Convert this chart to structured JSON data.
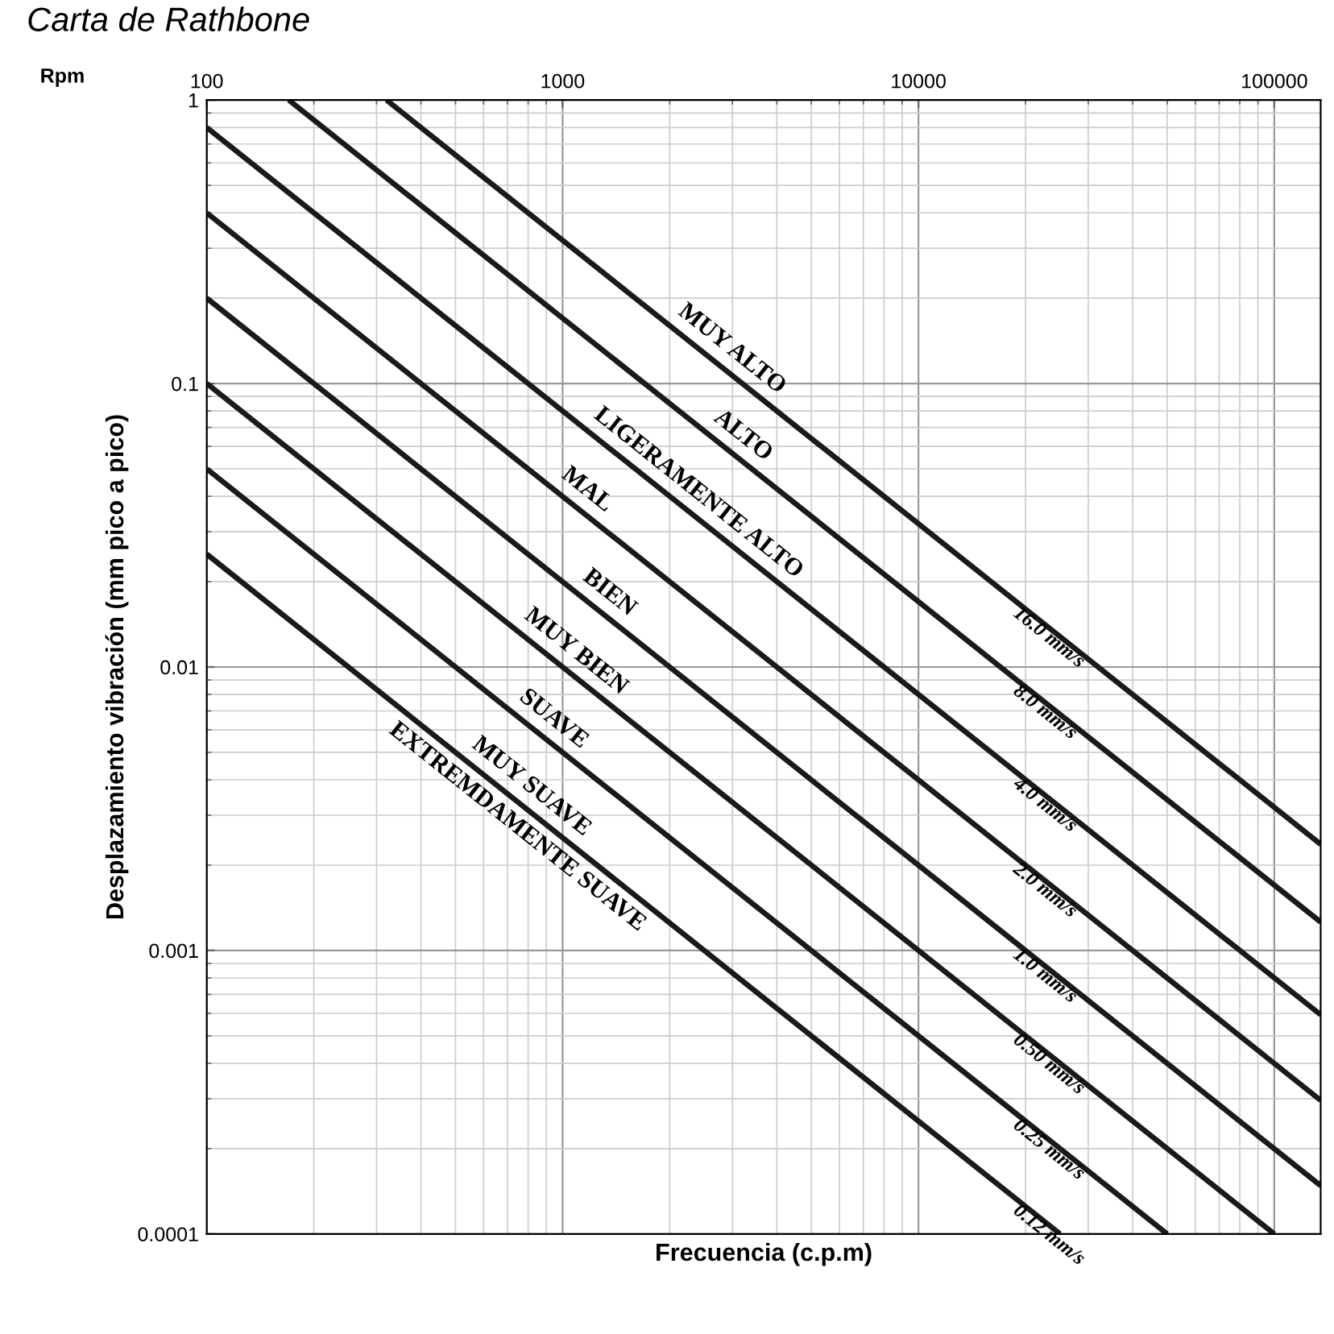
{
  "chart_data": {
    "type": "line",
    "title": "Carta de Rathbone",
    "xlabel": "Frecuencia (c.p.m)",
    "ylabel": "Desplazamiento vibración (mm pico a pico)",
    "log": "xy",
    "grid": true,
    "legend": false,
    "marker": "none",
    "line_style": "solid",
    "xlim": [
      100,
      135000
    ],
    "xticks": [
      100,
      1000,
      10000,
      100000
    ],
    "ylim": [
      0.0001,
      1
    ],
    "yticks": [
      0.0001,
      0.001,
      0.01,
      0.1,
      1
    ],
    "series": [
      {
        "name": "16.0 mm/s",
        "color": "#1a1a1a",
        "x": [
          320,
          135000
        ],
        "values": [
          1,
          0.00237
        ]
      },
      {
        "name": "8.0 mm/s",
        "color": "#1a1a1a",
        "x": [
          170,
          135000
        ],
        "values": [
          1,
          0.00126
        ]
      },
      {
        "name": "4.0 mm/s",
        "color": "#1a1a1a",
        "x": [
          100,
          135000
        ],
        "values": [
          0.8,
          0.000593
        ]
      },
      {
        "name": "2.0 mm/s",
        "color": "#1a1a1a",
        "x": [
          100,
          135000
        ],
        "values": [
          0.4,
          0.000296
        ]
      },
      {
        "name": "1.0 mm/s",
        "color": "#1a1a1a",
        "x": [
          100,
          135000
        ],
        "values": [
          0.2,
          0.000148
        ]
      },
      {
        "name": "0.50 mm/s",
        "color": "#1a1a1a",
        "x": [
          100,
          100000
        ],
        "values": [
          0.1,
          0.0001
        ]
      },
      {
        "name": "0.25 mm/s",
        "color": "#1a1a1a",
        "x": [
          100,
          50000
        ],
        "values": [
          0.05,
          0.0001
        ]
      },
      {
        "name": "0.12 mm/s",
        "color": "#1a1a1a",
        "x": [
          100,
          25000
        ],
        "values": [
          0.025,
          0.0001
        ]
      }
    ],
    "annotations": [
      "Rpm",
      "MUY ALTO",
      "ALTO",
      "LIGERAMENTE ALTO",
      "MAL",
      "BIEN",
      "MUY BIEN",
      "SUAVE",
      "MUY SUAVE",
      "EXTREMDAMENTE SUAVE"
    ]
  }
}
